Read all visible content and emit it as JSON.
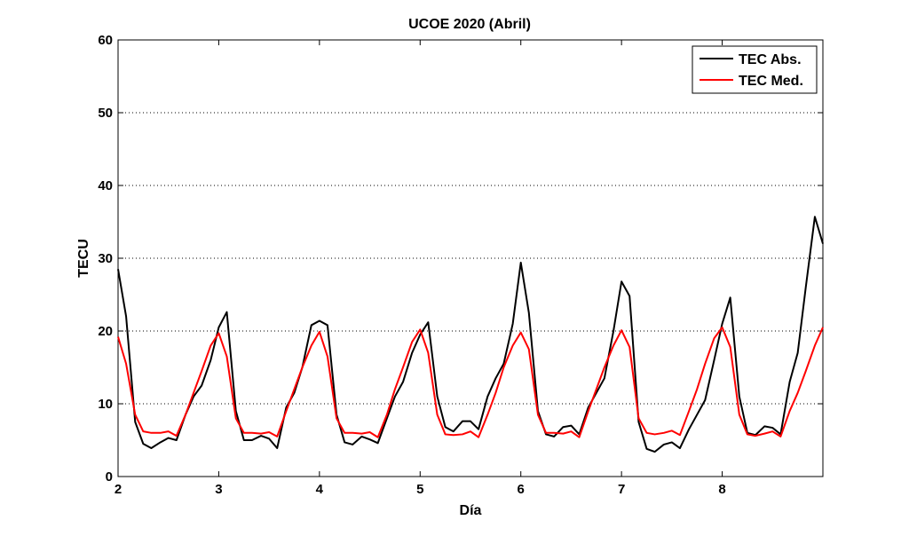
{
  "chart_data": {
    "type": "line",
    "title": "UCOE 2020 (Abril)",
    "xlabel": "Día",
    "ylabel": "TECU",
    "xlim": [
      2,
      9
    ],
    "ylim": [
      0,
      60
    ],
    "xticks": [
      "2",
      "3",
      "4",
      "5",
      "6",
      "7",
      "8"
    ],
    "yticks": [
      "0",
      "10",
      "20",
      "30",
      "40",
      "50",
      "60"
    ],
    "grid": "horizontal-dotted",
    "legend_position": "top-right",
    "series": [
      {
        "name": "TEC Abs.",
        "color": "#000000",
        "points": [
          [
            2.0,
            28.5
          ],
          [
            2.08,
            22.0
          ],
          [
            2.17,
            7.5
          ],
          [
            2.25,
            4.5
          ],
          [
            2.33,
            3.9
          ],
          [
            2.42,
            4.7
          ],
          [
            2.5,
            5.3
          ],
          [
            2.58,
            5.0
          ],
          [
            2.67,
            8.5
          ],
          [
            2.75,
            11.0
          ],
          [
            2.83,
            12.5
          ],
          [
            2.92,
            16.0
          ],
          [
            3.0,
            20.5
          ],
          [
            3.08,
            22.6
          ],
          [
            3.17,
            9.0
          ],
          [
            3.25,
            5.0
          ],
          [
            3.33,
            5.0
          ],
          [
            3.42,
            5.6
          ],
          [
            3.5,
            5.2
          ],
          [
            3.58,
            3.9
          ],
          [
            3.67,
            9.5
          ],
          [
            3.75,
            11.5
          ],
          [
            3.83,
            15.0
          ],
          [
            3.92,
            20.8
          ],
          [
            4.0,
            21.4
          ],
          [
            4.08,
            20.8
          ],
          [
            4.17,
            8.5
          ],
          [
            4.25,
            4.7
          ],
          [
            4.33,
            4.4
          ],
          [
            4.42,
            5.5
          ],
          [
            4.5,
            5.1
          ],
          [
            4.58,
            4.6
          ],
          [
            4.67,
            8.0
          ],
          [
            4.75,
            11.0
          ],
          [
            4.83,
            13.0
          ],
          [
            4.92,
            17.0
          ],
          [
            5.0,
            19.5
          ],
          [
            5.08,
            21.2
          ],
          [
            5.17,
            11.0
          ],
          [
            5.25,
            6.8
          ],
          [
            5.33,
            6.2
          ],
          [
            5.42,
            7.6
          ],
          [
            5.5,
            7.6
          ],
          [
            5.58,
            6.5
          ],
          [
            5.67,
            11.0
          ],
          [
            5.75,
            13.5
          ],
          [
            5.83,
            15.5
          ],
          [
            5.92,
            21.0
          ],
          [
            6.0,
            29.4
          ],
          [
            6.08,
            22.5
          ],
          [
            6.17,
            9.0
          ],
          [
            6.25,
            5.8
          ],
          [
            6.33,
            5.5
          ],
          [
            6.42,
            6.8
          ],
          [
            6.5,
            7.0
          ],
          [
            6.58,
            5.8
          ],
          [
            6.67,
            9.5
          ],
          [
            6.75,
            11.5
          ],
          [
            6.83,
            13.5
          ],
          [
            6.92,
            20.0
          ],
          [
            7.0,
            26.8
          ],
          [
            7.08,
            24.8
          ],
          [
            7.17,
            7.5
          ],
          [
            7.25,
            3.8
          ],
          [
            7.33,
            3.4
          ],
          [
            7.42,
            4.4
          ],
          [
            7.5,
            4.7
          ],
          [
            7.58,
            3.9
          ],
          [
            7.67,
            6.5
          ],
          [
            7.75,
            8.5
          ],
          [
            7.83,
            10.5
          ],
          [
            7.92,
            16.0
          ],
          [
            8.0,
            21.0
          ],
          [
            8.08,
            24.6
          ],
          [
            8.17,
            11.0
          ],
          [
            8.25,
            6.0
          ],
          [
            8.33,
            5.7
          ],
          [
            8.42,
            6.9
          ],
          [
            8.5,
            6.7
          ],
          [
            8.58,
            5.8
          ],
          [
            8.67,
            13.0
          ],
          [
            8.75,
            17.0
          ],
          [
            8.83,
            26.0
          ],
          [
            8.92,
            35.7
          ],
          [
            9.0,
            32.0
          ]
        ]
      },
      {
        "name": "TEC Med.",
        "color": "#ff0000",
        "points": [
          [
            2.0,
            19.2
          ],
          [
            2.08,
            15.5
          ],
          [
            2.17,
            8.5
          ],
          [
            2.25,
            6.2
          ],
          [
            2.33,
            6.0
          ],
          [
            2.42,
            6.0
          ],
          [
            2.5,
            6.2
          ],
          [
            2.58,
            5.6
          ],
          [
            2.67,
            8.5
          ],
          [
            2.75,
            11.5
          ],
          [
            2.83,
            14.5
          ],
          [
            2.92,
            18.0
          ],
          [
            3.0,
            19.7
          ],
          [
            3.08,
            16.5
          ],
          [
            3.17,
            8.0
          ],
          [
            3.25,
            6.0
          ],
          [
            3.33,
            6.0
          ],
          [
            3.42,
            5.9
          ],
          [
            3.5,
            6.1
          ],
          [
            3.58,
            5.5
          ],
          [
            3.67,
            9.0
          ],
          [
            3.75,
            12.0
          ],
          [
            3.83,
            15.0
          ],
          [
            3.92,
            18.0
          ],
          [
            4.0,
            19.9
          ],
          [
            4.08,
            16.5
          ],
          [
            4.17,
            8.0
          ],
          [
            4.25,
            6.0
          ],
          [
            4.33,
            6.0
          ],
          [
            4.42,
            5.9
          ],
          [
            4.5,
            6.1
          ],
          [
            4.58,
            5.4
          ],
          [
            4.67,
            8.5
          ],
          [
            4.75,
            12.0
          ],
          [
            4.83,
            15.0
          ],
          [
            4.92,
            18.5
          ],
          [
            5.0,
            20.2
          ],
          [
            5.08,
            17.0
          ],
          [
            5.17,
            8.5
          ],
          [
            5.25,
            5.8
          ],
          [
            5.33,
            5.7
          ],
          [
            5.42,
            5.8
          ],
          [
            5.5,
            6.2
          ],
          [
            5.58,
            5.4
          ],
          [
            5.67,
            8.5
          ],
          [
            5.75,
            11.5
          ],
          [
            5.83,
            15.0
          ],
          [
            5.92,
            18.0
          ],
          [
            6.0,
            19.8
          ],
          [
            6.08,
            17.5
          ],
          [
            6.17,
            8.5
          ],
          [
            6.25,
            6.0
          ],
          [
            6.33,
            6.0
          ],
          [
            6.42,
            5.9
          ],
          [
            6.5,
            6.2
          ],
          [
            6.58,
            5.4
          ],
          [
            6.67,
            9.0
          ],
          [
            6.75,
            12.0
          ],
          [
            6.83,
            15.0
          ],
          [
            6.92,
            18.0
          ],
          [
            7.0,
            20.1
          ],
          [
            7.08,
            17.8
          ],
          [
            7.17,
            8.0
          ],
          [
            7.25,
            6.0
          ],
          [
            7.33,
            5.8
          ],
          [
            7.42,
            6.0
          ],
          [
            7.5,
            6.3
          ],
          [
            7.58,
            5.7
          ],
          [
            7.67,
            9.0
          ],
          [
            7.75,
            12.0
          ],
          [
            7.83,
            15.5
          ],
          [
            7.92,
            19.0
          ],
          [
            8.0,
            20.5
          ],
          [
            8.08,
            17.8
          ],
          [
            8.17,
            8.5
          ],
          [
            8.25,
            5.8
          ],
          [
            8.33,
            5.6
          ],
          [
            8.42,
            5.9
          ],
          [
            8.5,
            6.2
          ],
          [
            8.58,
            5.5
          ],
          [
            8.67,
            9.0
          ],
          [
            8.75,
            11.5
          ],
          [
            8.83,
            14.5
          ],
          [
            8.92,
            18.0
          ],
          [
            9.0,
            20.5
          ]
        ]
      }
    ]
  }
}
